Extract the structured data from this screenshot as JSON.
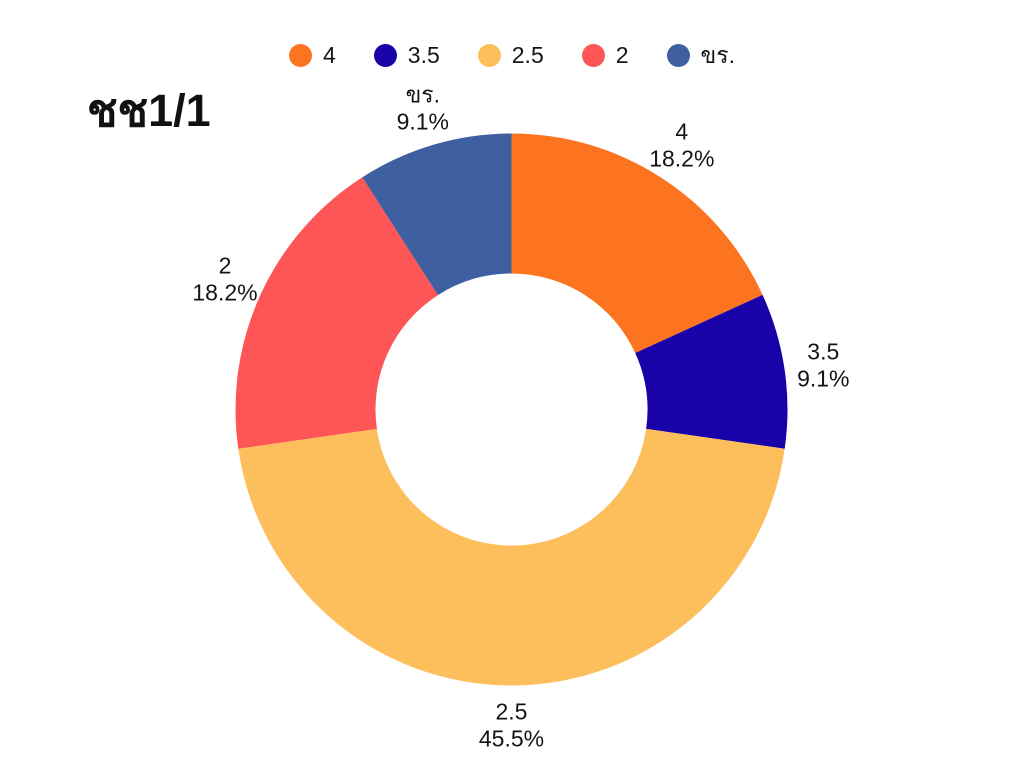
{
  "chart_data": {
    "type": "pie",
    "subtype": "donut",
    "title": "ชช1/1",
    "legend_position": "top",
    "start_angle_deg": 0,
    "direction": "clockwise",
    "background_color": "#ffffff",
    "label_format": "name_newline_percent",
    "segments": [
      {
        "label": "4",
        "percent": 18.2,
        "percent_label": "18.2%",
        "color": "#FC7420"
      },
      {
        "label": "3.5",
        "percent": 9.1,
        "percent_label": "9.1%",
        "color": "#1802A8"
      },
      {
        "label": "2.5",
        "percent": 45.5,
        "percent_label": "45.5%",
        "color": "#FDBE5C"
      },
      {
        "label": "2",
        "percent": 18.2,
        "percent_label": "18.2%",
        "color": "#FE5657"
      },
      {
        "label": "ขร.",
        "percent": 9.1,
        "percent_label": "9.1%",
        "color": "#3E60A1"
      }
    ]
  }
}
